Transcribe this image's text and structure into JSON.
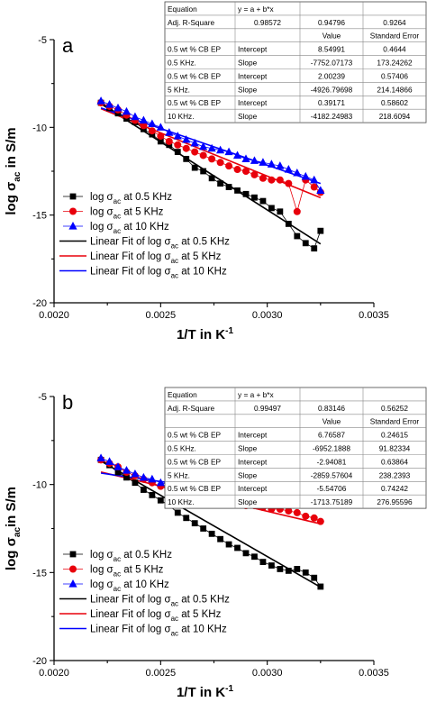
{
  "chart_data": [
    {
      "type": "scatter",
      "panel_label": "a",
      "xlabel_main": "1/T in K",
      "xlabel_sup": "-1",
      "ylabel_main": "log σ",
      "ylabel_sub": "ac",
      "ylabel_tail": " in S/m",
      "xlim": [
        0.002,
        0.0035
      ],
      "ylim": [
        -20,
        -5
      ],
      "xticks": [
        "0.0020",
        "0.0025",
        "0.0030",
        "0.0035"
      ],
      "yticks": [
        "-20",
        "-15",
        "-10",
        "-5"
      ],
      "legend_placement": "lower-left",
      "series": [
        {
          "name": "log σac at 0.5 KHz",
          "label_main": "log σ",
          "label_sub": "ac",
          "label_tail": " at 0.5 KHz",
          "color": "#000000",
          "marker": "square",
          "x": [
            0.00222,
            0.00226,
            0.0023,
            0.00234,
            0.00238,
            0.00242,
            0.00246,
            0.0025,
            0.00254,
            0.00258,
            0.00262,
            0.00266,
            0.0027,
            0.00274,
            0.00278,
            0.00282,
            0.00286,
            0.0029,
            0.00294,
            0.00298,
            0.00302,
            0.00306,
            0.0031,
            0.00314,
            0.00318,
            0.00322,
            0.00325
          ],
          "y": [
            -8.6,
            -8.9,
            -9.2,
            -9.5,
            -9.7,
            -10.1,
            -10.4,
            -10.8,
            -11.0,
            -11.4,
            -11.8,
            -12.3,
            -12.5,
            -12.9,
            -13.2,
            -13.4,
            -13.6,
            -13.8,
            -14.0,
            -14.2,
            -14.6,
            -14.8,
            -15.5,
            -16.2,
            -16.6,
            -16.9,
            -15.9
          ]
        },
        {
          "name": "log σac at 5 KHz",
          "label_main": "log σ",
          "label_sub": "ac",
          "label_tail": " at 5 KHz",
          "color": "#e8000b",
          "marker": "circle",
          "x": [
            0.00222,
            0.00226,
            0.0023,
            0.00234,
            0.00238,
            0.00242,
            0.00246,
            0.0025,
            0.00254,
            0.00258,
            0.00262,
            0.00266,
            0.0027,
            0.00274,
            0.00278,
            0.00282,
            0.00286,
            0.0029,
            0.00294,
            0.00298,
            0.00302,
            0.00306,
            0.0031,
            0.00314,
            0.00318,
            0.00322,
            0.00325
          ],
          "y": [
            -8.6,
            -8.8,
            -9.0,
            -9.3,
            -9.6,
            -9.9,
            -10.2,
            -10.5,
            -10.8,
            -11.0,
            -11.2,
            -11.4,
            -11.6,
            -11.8,
            -12.0,
            -12.2,
            -12.4,
            -12.5,
            -12.7,
            -12.9,
            -13.0,
            -13.0,
            -13.2,
            -14.8,
            -13.0,
            -13.4,
            -13.7
          ]
        },
        {
          "name": "log σac at 10 KHz",
          "label_main": "log σ",
          "label_sub": "ac",
          "label_tail": " at 10 KHz",
          "color": "#0000ff",
          "marker": "triangle",
          "x": [
            0.00222,
            0.00226,
            0.0023,
            0.00234,
            0.00238,
            0.00242,
            0.00246,
            0.0025,
            0.00254,
            0.00258,
            0.00262,
            0.00266,
            0.0027,
            0.00274,
            0.00278,
            0.00282,
            0.00286,
            0.0029,
            0.00294,
            0.00298,
            0.00302,
            0.00306,
            0.0031,
            0.00314,
            0.00318,
            0.00322,
            0.00325
          ],
          "y": [
            -8.5,
            -8.7,
            -8.9,
            -9.1,
            -9.4,
            -9.6,
            -9.8,
            -10.0,
            -10.3,
            -10.5,
            -10.7,
            -10.9,
            -11.1,
            -11.2,
            -11.3,
            -11.4,
            -11.6,
            -11.8,
            -11.9,
            -12.0,
            -12.1,
            -12.2,
            -12.4,
            -12.6,
            -12.8,
            -13.0,
            -13.6
          ]
        }
      ],
      "fits": [
        {
          "name": "Linear Fit of log σac at 0.5 KHz",
          "label_main": "Linear Fit of log σ",
          "label_sub": "ac",
          "label_tail": " at 0.5 KHz",
          "color": "#000000",
          "intercept": 8.54991,
          "slope": -7752.07173
        },
        {
          "name": "Linear Fit of log σac at 5 KHz",
          "label_main": "Linear Fit of log σ",
          "label_sub": "ac",
          "label_tail": " at 5 KHz",
          "color": "#e8000b",
          "intercept": 2.00239,
          "slope": -4926.79698
        },
        {
          "name": "Linear Fit of log σac at 10 KHz",
          "label_main": "Linear Fit of log σ",
          "label_sub": "ac",
          "label_tail": " at 10 KHz",
          "color": "#0000ff",
          "intercept": 0.39171,
          "slope": -4182.24983
        }
      ],
      "fit_x_range": [
        0.00222,
        0.00325
      ],
      "table": {
        "rows": [
          [
            "Equation",
            "y = a + b*x",
            "",
            ""
          ],
          [
            "Adj. R-Square",
            "0.98572",
            "0.94796",
            "0.9264"
          ],
          [
            "",
            "",
            "Value",
            "Standard Error"
          ],
          [
            "0.5 wt % CB EP",
            "Intercept",
            "8.54991",
            "0.4644"
          ],
          [
            "0.5 KHz.",
            "Slope",
            "-7752.07173",
            "173.24262"
          ],
          [
            "0.5 wt % CB EP",
            "Intercept",
            "2.00239",
            "0.57406"
          ],
          [
            "5 KHz.",
            "Slope",
            "-4926.79698",
            "214.14866"
          ],
          [
            "0.5 wt % CB EP",
            "Intercept",
            "0.39171",
            "0.58602"
          ],
          [
            "10 KHz.",
            "Slope",
            "-4182.24983",
            "218.6094"
          ]
        ]
      }
    },
    {
      "type": "scatter",
      "panel_label": "b",
      "xlabel_main": "1/T in K",
      "xlabel_sup": "-1",
      "ylabel_main": "log σ",
      "ylabel_sub": "ac",
      "ylabel_tail": "in S/m",
      "xlim": [
        0.002,
        0.0035
      ],
      "ylim": [
        -20,
        -5
      ],
      "xticks": [
        "0.0020",
        "0.0025",
        "0.0030",
        "0.0035"
      ],
      "yticks": [
        "-20",
        "-15",
        "-10",
        "-5"
      ],
      "legend_placement": "lower-left",
      "series": [
        {
          "name": "log σac at 0.5 KHz",
          "label_main": "log σ",
          "label_sub": "ac",
          "label_tail": " at 0.5 KHz",
          "color": "#000000",
          "marker": "square",
          "x": [
            0.00222,
            0.00226,
            0.0023,
            0.00234,
            0.00238,
            0.00242,
            0.00246,
            0.0025,
            0.00254,
            0.00258,
            0.00262,
            0.00266,
            0.0027,
            0.00274,
            0.00278,
            0.00282,
            0.00286,
            0.0029,
            0.00294,
            0.00298,
            0.00302,
            0.00306,
            0.0031,
            0.00314,
            0.00318,
            0.00322,
            0.00325
          ],
          "y": [
            -8.6,
            -8.9,
            -9.3,
            -9.6,
            -9.9,
            -10.3,
            -10.6,
            -10.9,
            -11.2,
            -11.6,
            -11.9,
            -12.2,
            -12.5,
            -12.8,
            -13.1,
            -13.4,
            -13.6,
            -13.9,
            -14.1,
            -14.4,
            -14.6,
            -14.8,
            -14.9,
            -14.8,
            -15.0,
            -15.3,
            -15.8
          ]
        },
        {
          "name": "log σac at 5 KHz",
          "label_main": "log σ",
          "label_sub": "ac",
          "label_tail": " at 5 KHz",
          "color": "#e8000b",
          "marker": "circle",
          "x": [
            0.00222,
            0.00226,
            0.0023,
            0.00234,
            0.00238,
            0.00242,
            0.00246,
            0.0025,
            0.00254,
            0.00258,
            0.00262,
            0.00266,
            0.0027,
            0.00274,
            0.00278,
            0.00282,
            0.00286,
            0.0029,
            0.00294,
            0.00298,
            0.00302,
            0.00306,
            0.0031,
            0.00314,
            0.00318,
            0.00322,
            0.00325
          ],
          "y": [
            -8.6,
            -8.8,
            -9.0,
            -9.3,
            -9.5,
            -9.7,
            -9.9,
            -10.1,
            -10.3,
            -10.5,
            -10.7,
            -10.8,
            -10.9,
            -11.0,
            -11.0,
            -11.1,
            -11.1,
            -11.2,
            -11.2,
            -11.3,
            -11.4,
            -11.4,
            -11.5,
            -11.6,
            -11.8,
            -11.9,
            -12.1
          ]
        },
        {
          "name": "log σac at 10 KHz",
          "label_main": "log σ",
          "label_sub": "ac",
          "label_tail": " at 10 KHz",
          "color": "#0000ff",
          "marker": "triangle",
          "x": [
            0.00222,
            0.00226,
            0.0023,
            0.00234,
            0.00238,
            0.00242,
            0.00246,
            0.0025,
            0.00254,
            0.00258,
            0.00262,
            0.00266,
            0.0027,
            0.00274,
            0.00278,
            0.00282,
            0.00286,
            0.0029,
            0.00294,
            0.00298,
            0.00302,
            0.00306,
            0.0031,
            0.00314,
            0.00318,
            0.00322,
            0.00325
          ],
          "y": [
            -8.5,
            -8.7,
            -9.0,
            -9.2,
            -9.4,
            -9.6,
            -9.7,
            -9.9,
            -10.0,
            -10.1,
            -10.2,
            -10.3,
            -10.4,
            -10.4,
            -10.5,
            -10.5,
            -10.5,
            -10.6,
            -10.6,
            -10.7,
            -10.7,
            -10.8,
            -10.9,
            -10.9,
            -11.0,
            -11.0,
            -11.1
          ]
        }
      ],
      "fits": [
        {
          "name": "Linear Fit of log σac at 0.5 KHz",
          "label_main": "Linear Fit of log σ",
          "label_sub": "ac",
          "label_tail": " at 0.5 KHz",
          "color": "#000000",
          "intercept": 6.76587,
          "slope": -6952.1888
        },
        {
          "name": "Linear Fit of log σac at 5 KHz",
          "label_main": "Linear Fit of log σ",
          "label_sub": "ac",
          "label_tail": " at 5 KHz",
          "color": "#e8000b",
          "intercept": -2.94081,
          "slope": -2859.57604
        },
        {
          "name": "Linear Fit of log σac at 10 KHz",
          "label_main": "Linear Fit of log σ",
          "label_sub": "ac",
          "label_tail": " at 10 KHz",
          "color": "#0000ff",
          "intercept": -5.54706,
          "slope": -1713.75189
        }
      ],
      "fit_x_range": [
        0.00222,
        0.00325
      ],
      "table": {
        "rows": [
          [
            "Equation",
            "y = a + b*x",
            "",
            ""
          ],
          [
            "Adj. R-Square",
            "0.99497",
            "0.83146",
            "0.56252"
          ],
          [
            "",
            "",
            "Value",
            "Standard Error"
          ],
          [
            "0.5 wt % CB EP",
            "Intercept",
            "6.76587",
            "0.24615"
          ],
          [
            "0.5 KHz.",
            "Slope",
            "-6952.1888",
            "91.82334"
          ],
          [
            "0.5 wt % CB EP",
            "Intercept",
            "-2.94081",
            "0.63864"
          ],
          [
            "5 KHz.",
            "Slope",
            "-2859.57604",
            "238.2393"
          ],
          [
            "0.5 wt % CB EP",
            "Intercept",
            "-5.54706",
            "0.74242"
          ],
          [
            "10 KHz.",
            "Slope",
            "-1713.75189",
            "276.95596"
          ]
        ]
      }
    }
  ]
}
